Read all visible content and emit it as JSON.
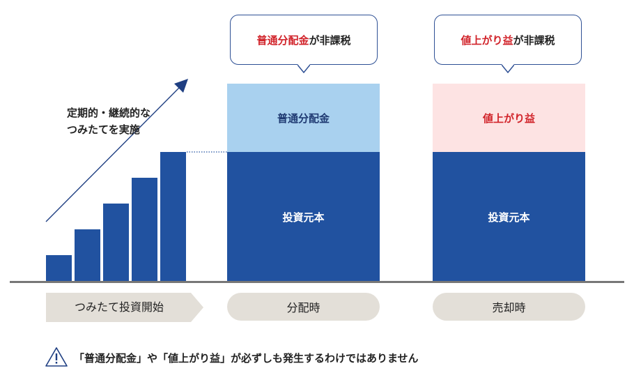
{
  "diagram": {
    "accumulation_note_line1": "定期的・継続的な",
    "accumulation_note_line2": "つみたてを実施",
    "distribution_callout": {
      "emphasis": "普通分配金",
      "rest": "が非課税"
    },
    "sale_callout": {
      "emphasis": "値上がり益",
      "rest": "が非課税"
    },
    "distribution_block": {
      "gain_label": "普通分配金",
      "principal_label": "投資元本"
    },
    "sale_block": {
      "gain_label": "値上がり益",
      "principal_label": "投資元本"
    },
    "stages": {
      "accumulate": "つみたて投資開始",
      "distribution": "分配時",
      "sale": "売却時"
    },
    "note": "「普通分配金」や「値上がり益」が必ずしも発生するわけではありません",
    "colors": {
      "principal": "#2152a0",
      "distribution_gain": "#a9d1ef",
      "sale_gain": "#fde3e3",
      "emphasis_red": "#d1232a",
      "pill": "#e3dfd8"
    }
  }
}
